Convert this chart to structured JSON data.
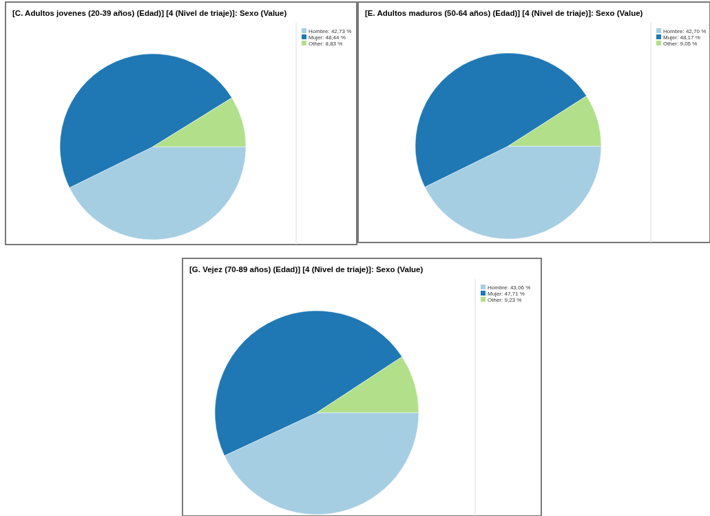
{
  "chart_data": [
    {
      "type": "pie",
      "title": "[C. Adultos jovenes (20-39 años) (Edad)] [4 (Nivel de triaje)]: Sexo (Value)",
      "categories": [
        "Hombre",
        "Mujer",
        "Other"
      ],
      "values": [
        42.73,
        48.44,
        8.83
      ],
      "value_labels": [
        "42,73 %",
        "48,44 %",
        "8,83 %"
      ],
      "colors": [
        "#a6cee3",
        "#1f78b4",
        "#b2df8a"
      ],
      "legend": "top right"
    },
    {
      "type": "pie",
      "title": "[E. Adultos maduros (50-64 años) (Edad)] [4 (Nivel de triaje)]: Sexo (Value)",
      "categories": [
        "Hombre",
        "Mujer",
        "Other"
      ],
      "values": [
        42.7,
        48.17,
        9.05
      ],
      "value_labels": [
        "42,70 %",
        "48,17 %",
        "9,05 %"
      ],
      "colors": [
        "#a6cee3",
        "#1f78b4",
        "#b2df8a"
      ],
      "legend": "top right"
    },
    {
      "type": "pie",
      "title": "[G. Vejez (70-89 años) (Edad)] [4 (Nivel de triaje)]: Sexo (Value)",
      "categories": [
        "Hombre",
        "Mujer",
        "Other"
      ],
      "values": [
        43.06,
        47.71,
        9.23
      ],
      "value_labels": [
        "43,06 %",
        "47,71 %",
        "9,23 %"
      ],
      "colors": [
        "#a6cee3",
        "#1f78b4",
        "#b2df8a"
      ],
      "legend": "top right"
    }
  ]
}
